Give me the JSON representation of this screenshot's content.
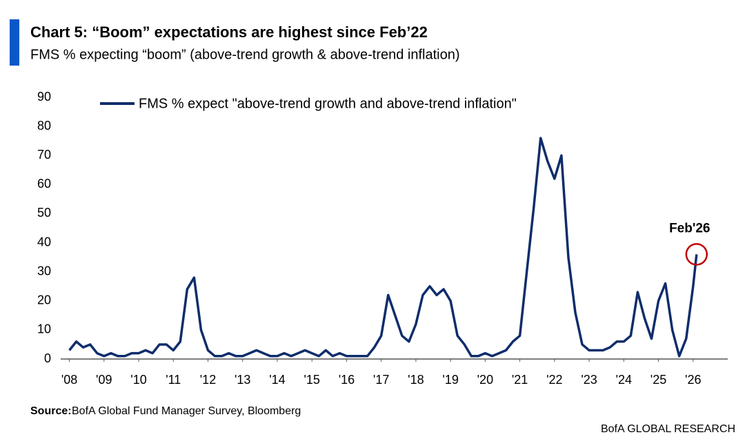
{
  "title": "Chart 5: “Boom” expectations are highest since Feb’22",
  "subtitle": "FMS % expecting “boom” (above-trend growth & above-trend inflation)",
  "source_label": "Source:",
  "source": "BofA Global Fund Manager Survey, Bloomberg",
  "footer": "BofA GLOBAL RESEARCH",
  "chart_data": {
    "type": "line",
    "x": [
      2008,
      2008.2,
      2008.4,
      2008.6,
      2008.8,
      2009,
      2009.2,
      2009.4,
      2009.6,
      2009.8,
      2010,
      2010.2,
      2010.4,
      2010.6,
      2010.8,
      2011,
      2011.2,
      2011.4,
      2011.6,
      2011.8,
      2012,
      2012.2,
      2012.4,
      2012.6,
      2012.8,
      2013,
      2013.2,
      2013.4,
      2013.6,
      2013.8,
      2014,
      2014.2,
      2014.4,
      2014.6,
      2014.8,
      2015,
      2015.2,
      2015.4,
      2015.6,
      2015.8,
      2016,
      2016.2,
      2016.4,
      2016.6,
      2016.8,
      2017,
      2017.2,
      2017.4,
      2017.6,
      2017.8,
      2018,
      2018.2,
      2018.4,
      2018.6,
      2018.8,
      2019,
      2019.2,
      2019.4,
      2019.6,
      2019.8,
      2020,
      2020.2,
      2020.4,
      2020.6,
      2020.8,
      2021,
      2021.2,
      2021.4,
      2021.6,
      2021.8,
      2022,
      2022.2,
      2022.4,
      2022.6,
      2022.8,
      2023,
      2023.2,
      2023.4,
      2023.6,
      2023.8,
      2024,
      2024.2,
      2024.4,
      2024.6,
      2024.8,
      2025,
      2025.2,
      2025.4,
      2025.6,
      2025.8,
      2026,
      2026.1
    ],
    "series": [
      {
        "name": "FMS % expect \"above-trend growth and above-trend inflation\"",
        "color": "#0f2d6b",
        "values": [
          3,
          6,
          4,
          5,
          2,
          1,
          2,
          1,
          1,
          2,
          2,
          3,
          2,
          5,
          5,
          3,
          6,
          24,
          28,
          10,
          3,
          1,
          1,
          2,
          1,
          1,
          2,
          3,
          2,
          1,
          1,
          2,
          1,
          2,
          3,
          2,
          1,
          3,
          1,
          2,
          1,
          1,
          1,
          1,
          4,
          8,
          22,
          15,
          8,
          6,
          12,
          22,
          25,
          22,
          24,
          20,
          8,
          5,
          1,
          1,
          2,
          1,
          2,
          3,
          6,
          8,
          30,
          52,
          76,
          68,
          62,
          70,
          35,
          16,
          5,
          3,
          3,
          3,
          4,
          6,
          6,
          8,
          23,
          14,
          7,
          20,
          26,
          10,
          1,
          7,
          25,
          36
        ]
      }
    ],
    "xlim": [
      2007.75,
      2027
    ],
    "xticks": [
      {
        "value": 2008,
        "label": "'08"
      },
      {
        "value": 2009,
        "label": "'09"
      },
      {
        "value": 2010,
        "label": "'10"
      },
      {
        "value": 2011,
        "label": "'11"
      },
      {
        "value": 2012,
        "label": "'12"
      },
      {
        "value": 2013,
        "label": "'13"
      },
      {
        "value": 2014,
        "label": "'14"
      },
      {
        "value": 2015,
        "label": "'15"
      },
      {
        "value": 2016,
        "label": "'16"
      },
      {
        "value": 2017,
        "label": "'17"
      },
      {
        "value": 2018,
        "label": "'18"
      },
      {
        "value": 2019,
        "label": "'19"
      },
      {
        "value": 2020,
        "label": "'20"
      },
      {
        "value": 2021,
        "label": "'21"
      },
      {
        "value": 2022,
        "label": "'22"
      },
      {
        "value": 2023,
        "label": "'23"
      },
      {
        "value": 2024,
        "label": "'24"
      },
      {
        "value": 2025,
        "label": "'25"
      },
      {
        "value": 2026,
        "label": "'26"
      }
    ],
    "ylim": [
      0,
      90
    ],
    "yticks": [
      0,
      10,
      20,
      30,
      40,
      50,
      60,
      70,
      80,
      90
    ],
    "annotation": "Feb'26",
    "annotation_color": "#c00000"
  }
}
